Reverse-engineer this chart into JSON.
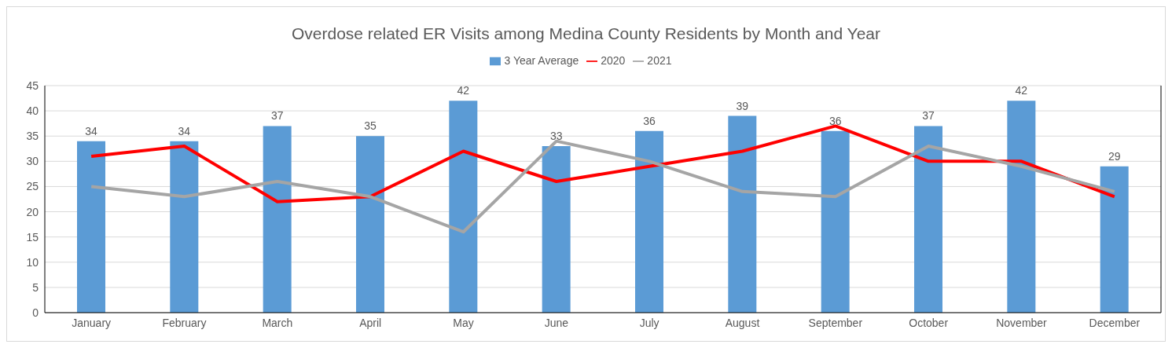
{
  "chart_data": {
    "type": "bar",
    "title": "Overdose related ER Visits among Medina County Residents by Month and Year",
    "categories": [
      "January",
      "February",
      "March",
      "April",
      "May",
      "June",
      "July",
      "August",
      "September",
      "October",
      "November",
      "December"
    ],
    "series": [
      {
        "name": "3 Year Average",
        "color": "#5b9bd5",
        "values": [
          34,
          34,
          37,
          35,
          42,
          33,
          36,
          39,
          36,
          37,
          42,
          29
        ],
        "value_labels": [
          "34",
          "34",
          "37",
          "35",
          "42",
          "33",
          "36",
          "39",
          "36",
          "37",
          "42",
          "29"
        ]
      },
      {
        "name": "2020",
        "type": "line",
        "color": "#ff0000",
        "values": [
          31,
          33,
          22,
          23,
          32,
          26,
          29,
          32,
          37,
          30,
          30,
          23
        ]
      },
      {
        "name": "2021",
        "type": "line",
        "color": "#a5a5a5",
        "values": [
          25,
          23,
          26,
          23,
          16,
          34,
          30,
          24,
          23,
          33,
          29,
          24
        ]
      }
    ],
    "ylim": [
      0,
      45
    ],
    "yticks": [
      0,
      5,
      10,
      15,
      20,
      25,
      30,
      35,
      40,
      45
    ],
    "grid": "y",
    "legend": "top",
    "marker": "none",
    "line_style": "solid"
  }
}
